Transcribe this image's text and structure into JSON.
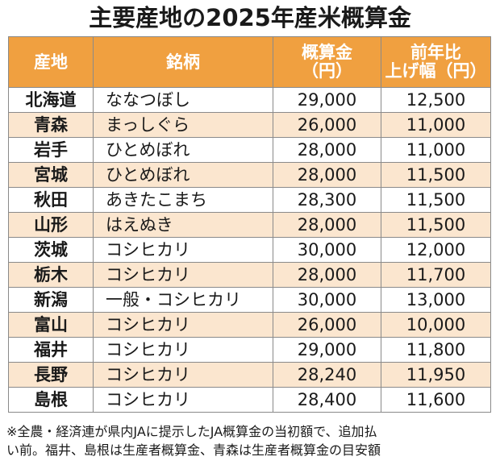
{
  "title": "主要産地の2025年産米概算金",
  "table": {
    "headers": {
      "region": "産地",
      "brand": "銘柄",
      "price_line1": "概算金",
      "price_line2": "（円）",
      "rise_line1": "前年比",
      "rise_line2": "上げ幅（円）"
    },
    "rows": [
      {
        "region": "北海道",
        "brand": "ななつぼし",
        "price": "29,000",
        "rise": "12,500"
      },
      {
        "region": "青森",
        "brand": "まっしぐら",
        "price": "26,000",
        "rise": "11,000"
      },
      {
        "region": "岩手",
        "brand": "ひとめぼれ",
        "price": "28,000",
        "rise": "11,000"
      },
      {
        "region": "宮城",
        "brand": "ひとめぼれ",
        "price": "28,000",
        "rise": "11,500"
      },
      {
        "region": "秋田",
        "brand": "あきたこまち",
        "price": "28,300",
        "rise": "11,500"
      },
      {
        "region": "山形",
        "brand": "はえぬき",
        "price": "28,000",
        "rise": "11,500"
      },
      {
        "region": "茨城",
        "brand": "コシヒカリ",
        "price": "30,000",
        "rise": "12,000"
      },
      {
        "region": "栃木",
        "brand": "コシヒカリ",
        "price": "28,000",
        "rise": "11,700"
      },
      {
        "region": "新潟",
        "brand": "一般・コシヒカリ",
        "price": "30,000",
        "rise": "13,000"
      },
      {
        "region": "富山",
        "brand": "コシヒカリ",
        "price": "26,000",
        "rise": "10,000"
      },
      {
        "region": "福井",
        "brand": "コシヒカリ",
        "price": "29,000",
        "rise": "11,800"
      },
      {
        "region": "長野",
        "brand": "コシヒカリ",
        "price": "28,240",
        "rise": "11,950"
      },
      {
        "region": "島根",
        "brand": "コシヒカリ",
        "price": "28,400",
        "rise": "11,600"
      }
    ]
  },
  "footnote": {
    "line1": "※全農・経済連が県内JAに提示したJA概算金の当初額で、追加払",
    "line2": "い前。福井、島根は生産者概算金、青森は生産者概算金の目安額"
  },
  "colors": {
    "header_bg": "#f0a040",
    "stripe_bg": "#fbe6cf",
    "border": "#8a8a8a"
  }
}
